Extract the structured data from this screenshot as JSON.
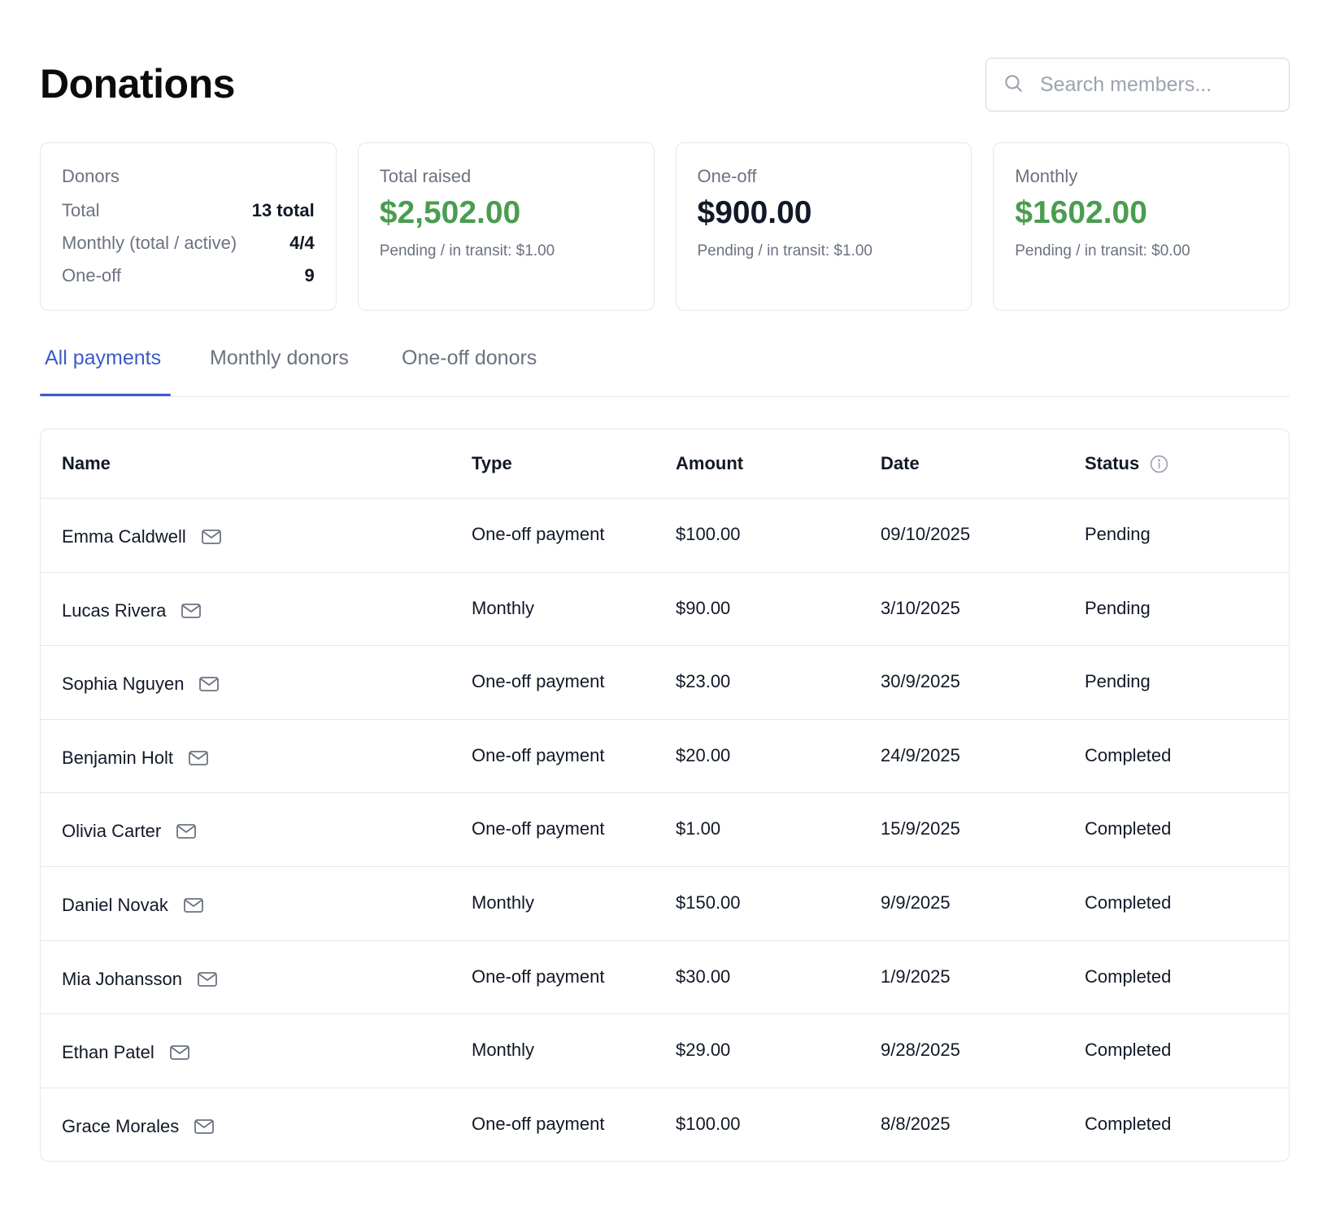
{
  "title": "Donations",
  "search": {
    "placeholder": "Search members..."
  },
  "stats": {
    "donors": {
      "label": "Donors",
      "rows": [
        {
          "key": "Total",
          "value": "13 total"
        },
        {
          "key": "Monthly (total / active)",
          "value": "4/4"
        },
        {
          "key": "One-off",
          "value": "9"
        }
      ]
    },
    "total_raised": {
      "label": "Total raised",
      "amount": "$2,502.00",
      "pending": "Pending / in transit: $1.00",
      "color": "#4a9d4f"
    },
    "one_off": {
      "label": "One-off",
      "amount": "$900.00",
      "pending": "Pending / in transit: $1.00",
      "color": "#111827"
    },
    "monthly": {
      "label": "Monthly",
      "amount": "$1602.00",
      "pending": "Pending / in transit: $0.00",
      "color": "#4a9d4f"
    }
  },
  "tabs": [
    {
      "label": "All payments",
      "active": true
    },
    {
      "label": "Monthly donors",
      "active": false
    },
    {
      "label": "One-off donors",
      "active": false
    }
  ],
  "table": {
    "headers": [
      "Name",
      "Type",
      "Amount",
      "Date",
      "Status"
    ],
    "rows": [
      {
        "name": "Emma Caldwell",
        "type": "One-off payment",
        "amount": "$100.00",
        "date": "09/10/2025",
        "status": "Pending"
      },
      {
        "name": "Lucas Rivera",
        "type": "Monthly",
        "amount": "$90.00",
        "date": "3/10/2025",
        "status": "Pending"
      },
      {
        "name": "Sophia Nguyen",
        "type": "One-off payment",
        "amount": "$23.00",
        "date": "30/9/2025",
        "status": "Pending"
      },
      {
        "name": "Benjamin Holt",
        "type": "One-off payment",
        "amount": "$20.00",
        "date": "24/9/2025",
        "status": "Completed"
      },
      {
        "name": "Olivia Carter",
        "type": "One-off payment",
        "amount": "$1.00",
        "date": "15/9/2025",
        "status": "Completed"
      },
      {
        "name": "Daniel Novak",
        "type": "Monthly",
        "amount": "$150.00",
        "date": "9/9/2025",
        "status": "Completed"
      },
      {
        "name": "Mia Johansson",
        "type": "One-off payment",
        "amount": "$30.00",
        "date": "1/9/2025",
        "status": "Completed"
      },
      {
        "name": "Ethan Patel",
        "type": "Monthly",
        "amount": "$29.00",
        "date": "9/28/2025",
        "status": "Completed"
      },
      {
        "name": "Grace Morales",
        "type": "One-off payment",
        "amount": "$100.00",
        "date": "8/8/2025",
        "status": "Completed"
      }
    ]
  },
  "icons": {
    "search": "search-icon",
    "mail": "mail-icon",
    "info": "info-icon"
  },
  "colors": {
    "accent": "#3b5bcc",
    "positive": "#4a9d4f",
    "border": "#e5e7eb",
    "muted": "#6b7280"
  }
}
